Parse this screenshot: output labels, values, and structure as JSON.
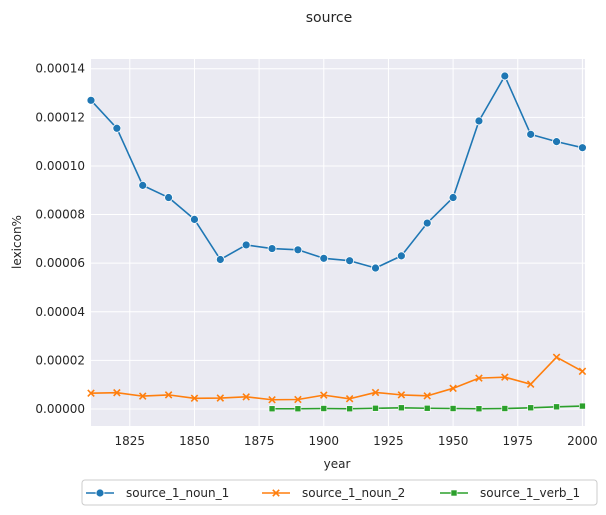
{
  "chart_data": {
    "type": "line",
    "title": "source",
    "xlabel": "year",
    "ylabel": "lexicon%",
    "xlim": [
      1810,
      2001
    ],
    "ylim": [
      -7e-06,
      0.000144
    ],
    "x_ticks": [
      1825,
      1850,
      1875,
      1900,
      1925,
      1950,
      1975,
      2000
    ],
    "y_ticks": [
      0,
      2e-05,
      4e-05,
      6e-05,
      8e-05,
      0.0001,
      0.00012,
      0.00014
    ],
    "y_tick_labels": [
      "0.00000",
      "0.00002",
      "0.00004",
      "0.00006",
      "0.00008",
      "0.00010",
      "0.00012",
      "0.00014"
    ],
    "grid": true,
    "legend_position": "bottom",
    "series": [
      {
        "name": "source_1_noun_1",
        "color": "#1f77b4",
        "marker": "circle",
        "x": [
          1810,
          1820,
          1830,
          1840,
          1850,
          1860,
          1870,
          1880,
          1890,
          1900,
          1910,
          1920,
          1930,
          1940,
          1950,
          1960,
          1970,
          1980,
          1990,
          2000
        ],
        "y": [
          0.000127,
          0.0001155,
          9.2e-05,
          8.7e-05,
          7.8e-05,
          6.15e-05,
          6.75e-05,
          6.6e-05,
          6.55e-05,
          6.2e-05,
          6.1e-05,
          5.8e-05,
          6.3e-05,
          7.65e-05,
          8.7e-05,
          0.0001185,
          0.000137,
          0.000113,
          0.00011,
          0.0001075
        ]
      },
      {
        "name": "source_1_noun_2",
        "color": "#ff7f0e",
        "marker": "x",
        "x": [
          1810,
          1820,
          1830,
          1840,
          1850,
          1860,
          1870,
          1880,
          1890,
          1900,
          1910,
          1920,
          1930,
          1940,
          1950,
          1960,
          1970,
          1980,
          1990,
          2000
        ],
        "y": [
          6.5e-06,
          6.7e-06,
          5.3e-06,
          5.8e-06,
          4.4e-06,
          4.5e-06,
          5e-06,
          3.8e-06,
          3.9e-06,
          5.7e-06,
          4.2e-06,
          6.8e-06,
          5.8e-06,
          5.4e-06,
          8.5e-06,
          1.27e-05,
          1.31e-05,
          1.02e-05,
          2.13e-05,
          1.55e-05
        ]
      },
      {
        "name": "source_1_verb_1",
        "color": "#2ca02c",
        "marker": "square",
        "x": [
          1880,
          1890,
          1900,
          1910,
          1920,
          1930,
          1940,
          1950,
          1960,
          1970,
          1980,
          1990,
          2000
        ],
        "y": [
          1e-07,
          1e-07,
          2e-07,
          1e-07,
          3e-07,
          5e-07,
          3e-07,
          2e-07,
          1e-07,
          2e-07,
          5e-07,
          9e-07,
          1.2e-06
        ]
      }
    ]
  }
}
